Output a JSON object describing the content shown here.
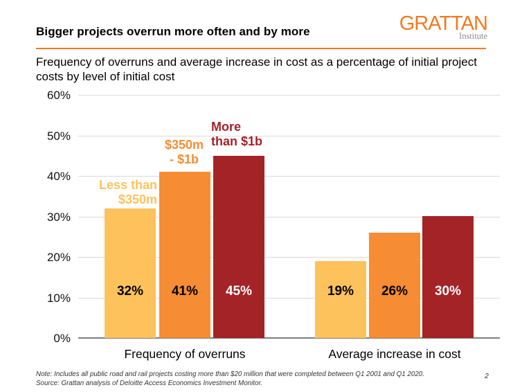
{
  "header": {
    "title": "Bigger projects overrun more often and by more",
    "subtitle": "Frequency of overruns and average increase in cost as a percentage of initial project costs by level of initial cost",
    "logo": {
      "name": "GRATTAN",
      "subname": "Institute",
      "color": "#F47920"
    },
    "rule_color": "#F47920"
  },
  "chart_data": {
    "type": "bar",
    "title": "Frequency of overruns and average increase in cost as a percentage of initial project costs by level of initial cost",
    "categories": [
      "Frequency of overruns",
      "Average increase in cost"
    ],
    "series": [
      {
        "name": "Less than $350m",
        "name_lines": [
          "Less than",
          "$350m"
        ],
        "color": "#FDC25C",
        "value_label_color": "#000000",
        "values": [
          32,
          19
        ],
        "value_labels": [
          "32%",
          "19%"
        ]
      },
      {
        "name": "$350m - $1b",
        "name_lines": [
          "$350m",
          "- $1b"
        ],
        "color": "#F68C33",
        "value_label_color": "#000000",
        "values": [
          41,
          26
        ],
        "value_labels": [
          "41%",
          "26%"
        ]
      },
      {
        "name": "More than $1b",
        "name_lines": [
          "More",
          "than $1b"
        ],
        "color": "#A32327",
        "value_label_color": "#FFFFFF",
        "values": [
          45,
          30
        ],
        "value_labels": [
          "45%",
          "30%"
        ]
      }
    ],
    "ylim": [
      0,
      60
    ],
    "ytick_labels": [
      "60%",
      "50%",
      "40%",
      "30%",
      "20%",
      "10%",
      "0%"
    ],
    "grid": true,
    "gridline_color": "#D9D9D9",
    "axis_color": "#7F7F7F",
    "legend_position": "labels-above-bars"
  },
  "footer": {
    "note": "Note: Includes all public road and rail projects costing more than $20 million that were completed between Q1 2001 and Q1 2020.",
    "source": "Source: Grattan analysis of Deloitte Access Economics Investment Monitor.",
    "page_number": "2"
  }
}
